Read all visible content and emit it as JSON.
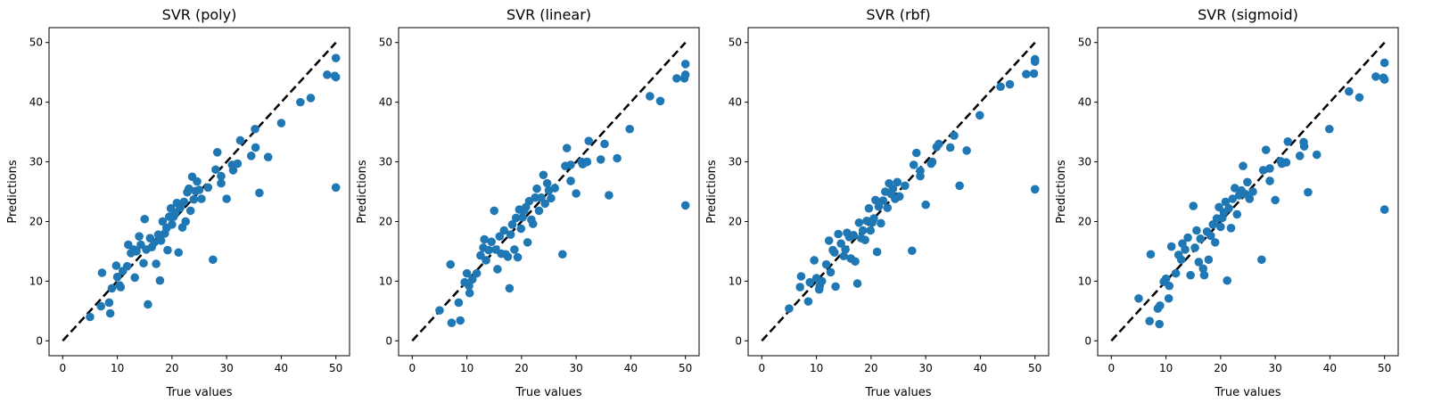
{
  "style": {
    "point_color": "#1f77b4",
    "line_color": "#000000"
  },
  "chart_data": [
    {
      "type": "scatter",
      "title": "SVR (poly)",
      "xlabel": "True values",
      "ylabel": "Predictions",
      "xlim": [
        -2.5,
        52.5
      ],
      "ylim": [
        -2.5,
        52.5
      ],
      "xticks": [
        0,
        10,
        20,
        30,
        40,
        50
      ],
      "yticks": [
        0,
        10,
        20,
        30,
        40,
        50
      ],
      "reference_line": {
        "x": [
          0,
          50
        ],
        "y": [
          0,
          50
        ],
        "style": "dashed"
      },
      "points": [
        [
          5,
          4
        ],
        [
          7,
          5.8
        ],
        [
          7.2,
          11.4
        ],
        [
          8.5,
          6.4
        ],
        [
          8.7,
          4.6
        ],
        [
          9,
          8.8
        ],
        [
          9.8,
          12.6
        ],
        [
          10,
          10.7
        ],
        [
          10.4,
          9.3
        ],
        [
          10.6,
          9
        ],
        [
          11,
          11.7
        ],
        [
          11.8,
          12.5
        ],
        [
          12,
          16.1
        ],
        [
          12.5,
          14.7
        ],
        [
          13,
          15.3
        ],
        [
          13.2,
          10.6
        ],
        [
          13.5,
          15
        ],
        [
          14,
          17.5
        ],
        [
          14.3,
          16.1
        ],
        [
          14.8,
          13
        ],
        [
          15,
          20.4
        ],
        [
          15.3,
          15.3
        ],
        [
          15.6,
          6.1
        ],
        [
          16,
          17.2
        ],
        [
          16.3,
          15.7
        ],
        [
          16.8,
          16.5
        ],
        [
          17.1,
          12.9
        ],
        [
          17.5,
          17.8
        ],
        [
          17.8,
          10.1
        ],
        [
          18,
          16.8
        ],
        [
          18.3,
          20
        ],
        [
          18.7,
          18
        ],
        [
          19,
          18.9
        ],
        [
          19.2,
          15.2
        ],
        [
          19.5,
          20.8
        ],
        [
          19.8,
          22.2
        ],
        [
          20,
          19.5
        ],
        [
          20.3,
          20.8
        ],
        [
          20.6,
          21.5
        ],
        [
          20.9,
          23.1
        ],
        [
          21.2,
          14.8
        ],
        [
          21.5,
          22.3
        ],
        [
          21.9,
          19
        ],
        [
          22.2,
          23.3
        ],
        [
          22.5,
          20
        ],
        [
          22.8,
          24.9
        ],
        [
          23.1,
          25.5
        ],
        [
          23.4,
          21.8
        ],
        [
          23.7,
          27.5
        ],
        [
          24,
          23.7
        ],
        [
          24.3,
          25.1
        ],
        [
          24.6,
          26.7
        ],
        [
          25,
          25.3
        ],
        [
          25.4,
          23.8
        ],
        [
          26.6,
          25.7
        ],
        [
          27.5,
          13.6
        ],
        [
          28,
          28.7
        ],
        [
          28.3,
          31.6
        ],
        [
          29,
          27.6
        ],
        [
          29,
          26.4
        ],
        [
          30,
          23.8
        ],
        [
          31,
          29.5
        ],
        [
          31.2,
          28.6
        ],
        [
          32,
          29.7
        ],
        [
          32.5,
          33.6
        ],
        [
          34.5,
          31
        ],
        [
          35.2,
          35.5
        ],
        [
          35.3,
          32.4
        ],
        [
          36,
          24.8
        ],
        [
          37.6,
          30.8
        ],
        [
          40,
          36.5
        ],
        [
          43.5,
          40
        ],
        [
          45.4,
          40.7
        ],
        [
          48.4,
          44.6
        ],
        [
          49.8,
          44.4
        ],
        [
          50,
          25.7
        ],
        [
          50,
          47.4
        ],
        [
          50,
          44.2
        ]
      ]
    },
    {
      "type": "scatter",
      "title": "SVR (linear)",
      "xlabel": "True values",
      "ylabel": "Predictions",
      "xlim": [
        -2.5,
        52.5
      ],
      "ylim": [
        -2.5,
        52.5
      ],
      "xticks": [
        0,
        10,
        20,
        30,
        40,
        50
      ],
      "yticks": [
        0,
        10,
        20,
        30,
        40,
        50
      ],
      "reference_line": {
        "x": [
          0,
          50
        ],
        "y": [
          0,
          50
        ],
        "style": "dashed"
      },
      "points": [
        [
          5,
          5.1
        ],
        [
          7,
          12.8
        ],
        [
          7.2,
          3
        ],
        [
          8.5,
          6.4
        ],
        [
          8.8,
          3.4
        ],
        [
          9.6,
          9.8
        ],
        [
          10,
          11.3
        ],
        [
          10.4,
          9.2
        ],
        [
          10.5,
          8
        ],
        [
          11,
          10.3
        ],
        [
          11.8,
          11.3
        ],
        [
          12.5,
          14.3
        ],
        [
          13,
          15.6
        ],
        [
          13.2,
          17
        ],
        [
          13.5,
          13.5
        ],
        [
          14,
          15.2
        ],
        [
          14.5,
          16.6
        ],
        [
          15,
          21.8
        ],
        [
          15.3,
          15.3
        ],
        [
          15.6,
          12
        ],
        [
          16,
          17.5
        ],
        [
          16.3,
          14.6
        ],
        [
          16.8,
          18.5
        ],
        [
          17.1,
          14.5
        ],
        [
          17.5,
          14.1
        ],
        [
          17.8,
          8.8
        ],
        [
          18,
          17.8
        ],
        [
          18.3,
          19.5
        ],
        [
          18.7,
          15.3
        ],
        [
          19,
          20.6
        ],
        [
          19.3,
          14
        ],
        [
          19.6,
          22
        ],
        [
          19.9,
          18.8
        ],
        [
          20.2,
          20.7
        ],
        [
          20.5,
          21.9
        ],
        [
          20.8,
          22.4
        ],
        [
          21.1,
          16.5
        ],
        [
          21.4,
          23.4
        ],
        [
          21.8,
          20.3
        ],
        [
          22.1,
          19.6
        ],
        [
          22.5,
          24
        ],
        [
          22.8,
          25.5
        ],
        [
          23.2,
          21.8
        ],
        [
          23.6,
          24
        ],
        [
          24,
          27.8
        ],
        [
          24.3,
          23
        ],
        [
          24.7,
          26.4
        ],
        [
          25,
          25.2
        ],
        [
          25.4,
          23.9
        ],
        [
          26.1,
          25.6
        ],
        [
          27.5,
          14.5
        ],
        [
          28,
          29.3
        ],
        [
          28.3,
          32.3
        ],
        [
          29,
          26.8
        ],
        [
          29,
          29.5
        ],
        [
          30,
          24.7
        ],
        [
          31,
          30
        ],
        [
          31.2,
          29.6
        ],
        [
          32,
          30
        ],
        [
          32.3,
          33.5
        ],
        [
          34.5,
          30.4
        ],
        [
          35.2,
          33
        ],
        [
          36,
          24.4
        ],
        [
          37.5,
          30.6
        ],
        [
          39.8,
          35.5
        ],
        [
          43.5,
          41
        ],
        [
          45.4,
          40.2
        ],
        [
          48.4,
          44
        ],
        [
          49.8,
          44
        ],
        [
          50,
          22.7
        ],
        [
          50,
          46.4
        ],
        [
          50,
          44.6
        ]
      ]
    },
    {
      "type": "scatter",
      "title": "SVR (rbf)",
      "xlabel": "True values",
      "ylabel": "Predictions",
      "xlim": [
        -2.5,
        52.5
      ],
      "ylim": [
        -2.5,
        52.5
      ],
      "xticks": [
        0,
        10,
        20,
        30,
        40,
        50
      ],
      "yticks": [
        0,
        10,
        20,
        30,
        40,
        50
      ],
      "reference_line": {
        "x": [
          0,
          50
        ],
        "y": [
          0,
          50
        ],
        "style": "dashed"
      },
      "points": [
        [
          5,
          5.4
        ],
        [
          7,
          9
        ],
        [
          7.2,
          10.8
        ],
        [
          8.5,
          6.6
        ],
        [
          8.8,
          9.8
        ],
        [
          9.6,
          13.5
        ],
        [
          10,
          10.5
        ],
        [
          10.5,
          8.6
        ],
        [
          10.6,
          9.2
        ],
        [
          11,
          10
        ],
        [
          11.8,
          12.8
        ],
        [
          12.3,
          16.8
        ],
        [
          12.6,
          11.5
        ],
        [
          13,
          15.2
        ],
        [
          13.3,
          14.8
        ],
        [
          13.5,
          9.1
        ],
        [
          14,
          17.9
        ],
        [
          14.5,
          16.3
        ],
        [
          15,
          14.2
        ],
        [
          15.3,
          15.3
        ],
        [
          15.6,
          18.1
        ],
        [
          16,
          17.4
        ],
        [
          16.3,
          13.8
        ],
        [
          16.8,
          17.7
        ],
        [
          17.1,
          13.3
        ],
        [
          17.5,
          9.6
        ],
        [
          17.8,
          19.8
        ],
        [
          18.2,
          17.2
        ],
        [
          18.5,
          18.5
        ],
        [
          18.9,
          16.9
        ],
        [
          19.2,
          20.1
        ],
        [
          19.6,
          22.2
        ],
        [
          19.9,
          18.5
        ],
        [
          20.2,
          19.8
        ],
        [
          20.5,
          20.5
        ],
        [
          20.8,
          23.6
        ],
        [
          21.1,
          14.9
        ],
        [
          21.4,
          22.5
        ],
        [
          21.8,
          19.7
        ],
        [
          22.2,
          23.5
        ],
        [
          22.6,
          25
        ],
        [
          23,
          22.3
        ],
        [
          23.3,
          26.4
        ],
        [
          23.7,
          24.6
        ],
        [
          24,
          25.5
        ],
        [
          24.4,
          23.8
        ],
        [
          24.8,
          26.6
        ],
        [
          25.2,
          24.2
        ],
        [
          26.2,
          26
        ],
        [
          27.5,
          15.1
        ],
        [
          27.8,
          29.5
        ],
        [
          28.3,
          31.5
        ],
        [
          29,
          28.5
        ],
        [
          29,
          27.6
        ],
        [
          30,
          22.8
        ],
        [
          31,
          29.7
        ],
        [
          31.2,
          30
        ],
        [
          32,
          32.5
        ],
        [
          32.4,
          33
        ],
        [
          34.5,
          32.4
        ],
        [
          35.2,
          34.4
        ],
        [
          36.2,
          26
        ],
        [
          37.5,
          31.9
        ],
        [
          39.9,
          37.8
        ],
        [
          43.7,
          42.6
        ],
        [
          45.4,
          43
        ],
        [
          48.4,
          44.7
        ],
        [
          49.8,
          44.8
        ],
        [
          50,
          25.4
        ],
        [
          50,
          47.2
        ],
        [
          50,
          46.8
        ]
      ]
    },
    {
      "type": "scatter",
      "title": "SVR (sigmoid)",
      "xlabel": "True values",
      "ylabel": "Predictions",
      "xlim": [
        -2.5,
        52.5
      ],
      "ylim": [
        -2.5,
        52.5
      ],
      "xticks": [
        0,
        10,
        20,
        30,
        40,
        50
      ],
      "yticks": [
        0,
        10,
        20,
        30,
        40,
        50
      ],
      "reference_line": {
        "x": [
          0,
          50
        ],
        "y": [
          0,
          50
        ],
        "style": "dashed"
      },
      "points": [
        [
          5,
          7.1
        ],
        [
          7,
          3.3
        ],
        [
          7.2,
          14.5
        ],
        [
          8.5,
          5.4
        ],
        [
          8.8,
          2.8
        ],
        [
          8.9,
          5.9
        ],
        [
          9.6,
          9.9
        ],
        [
          10,
          10.4
        ],
        [
          10.5,
          7.1
        ],
        [
          10.6,
          9.2
        ],
        [
          11,
          15.8
        ],
        [
          11.8,
          11.3
        ],
        [
          12.3,
          14.4
        ],
        [
          12.8,
          13.6
        ],
        [
          13,
          16.3
        ],
        [
          13.5,
          15.3
        ],
        [
          14,
          17.3
        ],
        [
          14.5,
          11
        ],
        [
          15,
          22.6
        ],
        [
          15.3,
          15.6
        ],
        [
          15.6,
          18.5
        ],
        [
          16,
          13.2
        ],
        [
          16.3,
          17.1
        ],
        [
          16.8,
          12.1
        ],
        [
          17,
          11
        ],
        [
          17.5,
          18.3
        ],
        [
          17.8,
          13.6
        ],
        [
          18.2,
          17.6
        ],
        [
          18.6,
          19.5
        ],
        [
          19,
          16.5
        ],
        [
          19.3,
          20.5
        ],
        [
          19.7,
          22.4
        ],
        [
          20,
          19.1
        ],
        [
          20.3,
          20.6
        ],
        [
          20.6,
          21.5
        ],
        [
          20.9,
          23.3
        ],
        [
          21.2,
          10.1
        ],
        [
          21.5,
          22.2
        ],
        [
          21.9,
          18.9
        ],
        [
          22.2,
          23.8
        ],
        [
          22.6,
          25.6
        ],
        [
          23,
          21.2
        ],
        [
          23.4,
          24.4
        ],
        [
          23.8,
          25.2
        ],
        [
          24.1,
          29.3
        ],
        [
          24.5,
          24.6
        ],
        [
          24.9,
          26.6
        ],
        [
          25.3,
          23.8
        ],
        [
          25.9,
          25
        ],
        [
          27.5,
          13.6
        ],
        [
          27.8,
          28.6
        ],
        [
          28.3,
          32
        ],
        [
          29,
          26.8
        ],
        [
          29,
          28.9
        ],
        [
          30,
          23.6
        ],
        [
          31,
          30.1
        ],
        [
          31.2,
          29.7
        ],
        [
          32,
          29.9
        ],
        [
          32.3,
          33.4
        ],
        [
          34.5,
          31
        ],
        [
          35.2,
          33.3
        ],
        [
          35.3,
          32.6
        ],
        [
          36,
          24.9
        ],
        [
          37.6,
          31.2
        ],
        [
          39.9,
          35.5
        ],
        [
          43.5,
          41.8
        ],
        [
          45.4,
          40.8
        ],
        [
          48.4,
          44.3
        ],
        [
          49.8,
          44.1
        ],
        [
          50,
          22
        ],
        [
          50,
          46.6
        ],
        [
          50,
          43.8
        ]
      ]
    }
  ]
}
